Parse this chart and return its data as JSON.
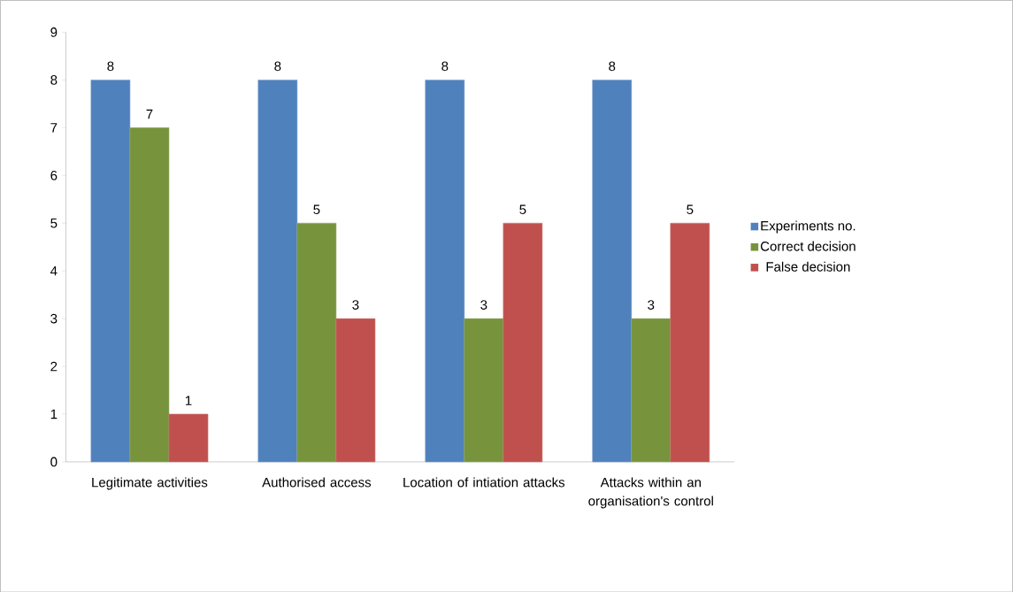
{
  "chart_data": {
    "type": "bar",
    "categories": [
      "Legitimate activities",
      "Authorised access",
      "Location of intiation attacks",
      "Attacks within an organisation's control"
    ],
    "series": [
      {
        "name": "Experiments no.",
        "color": "#4f81bd",
        "values": [
          8,
          8,
          8,
          8
        ]
      },
      {
        "name": "Correct decision",
        "color": "#77933c",
        "values": [
          7,
          5,
          3,
          3
        ]
      },
      {
        "name": "False decision",
        "color": "#c0504d",
        "values": [
          1,
          3,
          5,
          5
        ]
      }
    ],
    "ylim": [
      0,
      9
    ],
    "yticks": [
      0,
      1,
      2,
      3,
      4,
      5,
      6,
      7,
      8,
      9
    ],
    "data_labels": true,
    "legend": "right",
    "grid": false
  }
}
